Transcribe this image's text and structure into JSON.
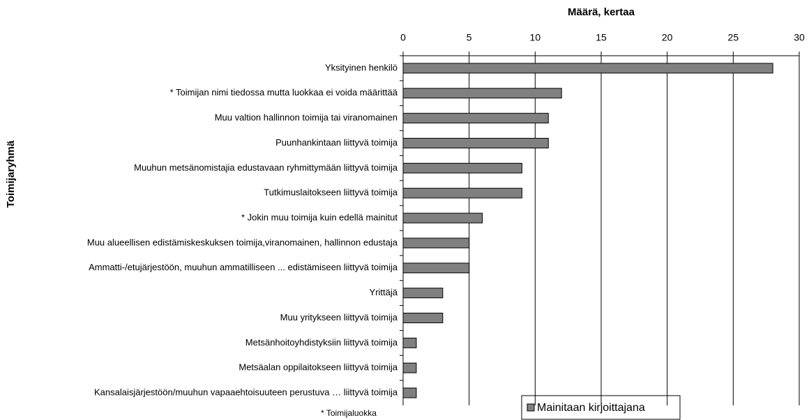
{
  "chart_data": {
    "type": "hbar",
    "x_label": "Määrä, kertaa",
    "y_label": "Toimijaryhmä",
    "footnote": "* Toimijaluokka",
    "categories": [
      "Yksityinen henkilö",
      "* Toimijan nimi tiedossa mutta luokkaa ei voida määrittää",
      "Muu valtion hallinnon toimija tai viranomainen",
      "Puunhankintaan liittyvä toimija",
      "Muuhun metsänomistajia edustavaan ryhmittymään liittyvä toimija",
      "Tutkimuslaitokseen liittyvä toimija",
      "* Jokin muu toimija kuin edellä mainitut",
      "Muu alueellisen edistämiskeskuksen toimija,viranomainen, hallinnon edustaja",
      "Ammatti-/etujärjestöön, muuhun ammatilliseen ... edistämiseen liittyvä toimija",
      "Yrittäjä",
      "Muu yritykseen liittyvä toimija",
      "Metsänhoitoyhdistyksiin liittyvä toimija",
      "Metsäalan oppilaitokseen liittyvä toimija",
      "Kansalaisjärjestöön/muuhun vapaaehtoisuuteen perustuva … liittyvä toimija"
    ],
    "series": [
      {
        "name": "Mainitaan kirjoittajana",
        "color": "#808080",
        "values": [
          28,
          12,
          11,
          11,
          9,
          9,
          6,
          5,
          5,
          3,
          3,
          1,
          1,
          1
        ]
      }
    ],
    "xlim": [
      0,
      30
    ],
    "xticks": [
      0,
      5,
      10,
      15,
      20,
      25,
      30
    ],
    "grid": true
  }
}
